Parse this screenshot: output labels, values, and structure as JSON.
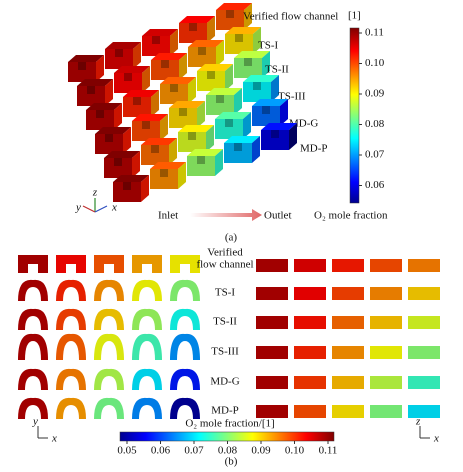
{
  "panel_a": {
    "row_labels": [
      "Verified flow channel",
      "TS-I",
      "TS-II",
      "TS-III",
      "MD-G",
      "MD-P"
    ],
    "colorbar": {
      "unit": "[1]",
      "ticks": [
        "0.11",
        "0.10",
        "0.09",
        "0.08",
        "0.07",
        "0.06"
      ]
    },
    "axes": [
      "y",
      "z",
      "x"
    ],
    "inlet": "Inlet",
    "outlet": "Outlet",
    "legend_label": "O₂ mole fraction",
    "caption": "(a)"
  },
  "panel_b": {
    "row_labels": [
      [
        "Verified",
        "flow channel"
      ],
      [
        "TS-I"
      ],
      [
        "TS-II"
      ],
      [
        "TS-III"
      ],
      [
        "MD-G"
      ],
      [
        "MD-P"
      ]
    ],
    "colorbar": {
      "label": "O₂ mole fraction/[1]",
      "ticks": [
        "0.05",
        "0.06",
        "0.07",
        "0.08",
        "0.09",
        "0.10",
        "0.11"
      ]
    },
    "left_axes": [
      "y",
      "x"
    ],
    "right_axes": [
      "z",
      "x"
    ],
    "caption": "(b)"
  }
}
